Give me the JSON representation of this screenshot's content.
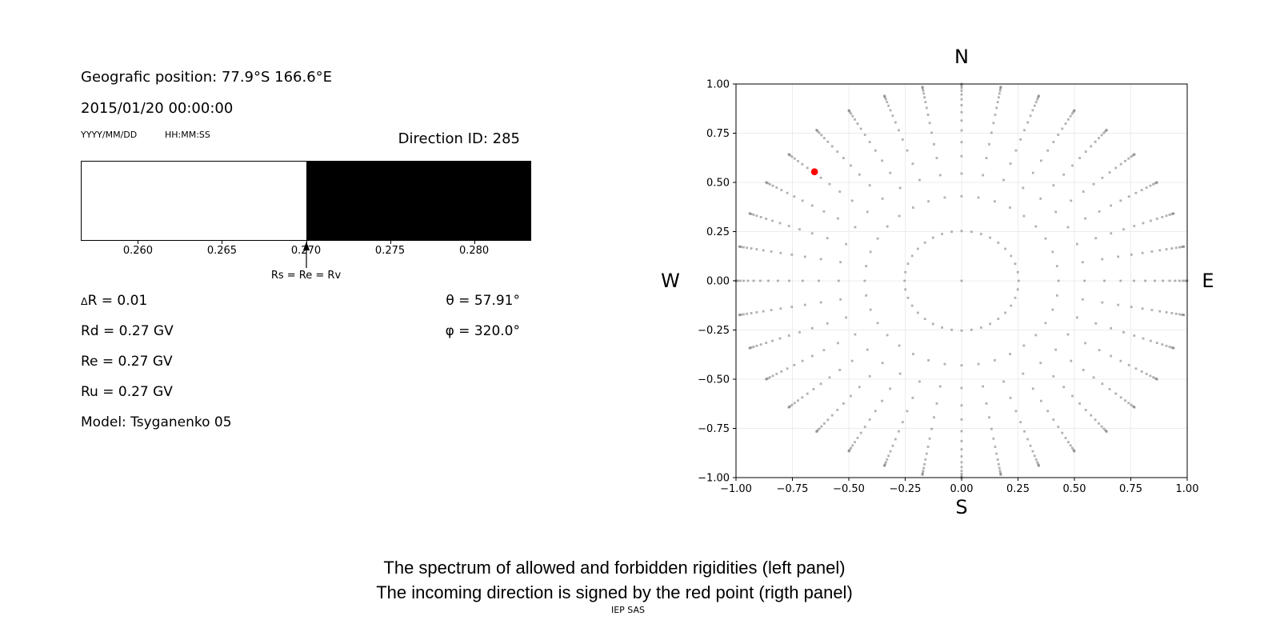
{
  "info_panel": {
    "position": "Geografic position: 77.9°S 166.6°E",
    "datetime": "2015/01/20 00:00:00",
    "date_format": "YYYY/MM/DD",
    "time_format": "HH:MM:SS",
    "direction_id": "Direction ID: 285",
    "delta_symbol": "Δ",
    "delta_rest": "R = 0.01",
    "rd": "Rd = 0.27 GV",
    "re": "Re = 0.27 GV",
    "ru": "Ru = 0.27 GV",
    "model": "Model: Tsyganenko 05",
    "theta": "θ = 57.91°",
    "phi": "φ = 320.0°"
  },
  "chart_data": [
    {
      "type": "bar",
      "name": "rigidity-spectrum",
      "xlim": [
        0.2566,
        0.2834
      ],
      "xticks": [
        0.26,
        0.265,
        0.27,
        0.275,
        0.28
      ],
      "xtick_labels": [
        "0.260",
        "0.265",
        "0.270",
        "0.275",
        "0.280"
      ],
      "segments": [
        {
          "label": "allowed",
          "from": 0.2566,
          "to": 0.27,
          "color": "#ffffff"
        },
        {
          "label": "forbidden",
          "from": 0.27,
          "to": 0.2834,
          "color": "#000000"
        }
      ],
      "annotation": {
        "text": "Rs = Re = Rv",
        "x": 0.27
      }
    },
    {
      "type": "scatter",
      "name": "arrival-direction-map",
      "xlim": [
        -1,
        1
      ],
      "ylim": [
        -1,
        1
      ],
      "xticks": [
        -1,
        -0.75,
        -0.5,
        -0.25,
        0,
        0.25,
        0.5,
        0.75,
        1
      ],
      "xtick_labels": [
        "−1.00",
        "−0.75",
        "−0.50",
        "−0.25",
        "0.00",
        "0.25",
        "0.50",
        "0.75",
        "1.00"
      ],
      "yticks": [
        1,
        0.75,
        0.5,
        0.25,
        0,
        -0.25,
        -0.5,
        -0.75,
        -1
      ],
      "ytick_labels": [
        "1.00",
        "0.75",
        "0.50",
        "0.25",
        "0.00",
        "−0.25",
        "−0.50",
        "−0.75",
        "−1.00"
      ],
      "grid": true,
      "grid_color": "#ececec",
      "compass": {
        "top": "N",
        "bottom": "S",
        "left": "W",
        "right": "E"
      },
      "points_rule": {
        "azimuth_start_deg": 0,
        "azimuth_step_deg": 10,
        "azimuth_count": 36,
        "rings": 16,
        "cos_step": 0.0645,
        "center_dot": true,
        "dot_color": "#7d7d7d",
        "dot_opacity": 0.6,
        "dot_size_px": 2.8
      },
      "red_point": {
        "x": -0.652,
        "y": 0.554,
        "radius_px": 4.3,
        "color": "#ff0000"
      }
    }
  ],
  "captions": {
    "line1": "The spectrum of allowed and forbidden rigidities (left panel)",
    "line2": "The incoming direction is signed by the red point (rigth panel)",
    "credit": "IEP SAS"
  }
}
